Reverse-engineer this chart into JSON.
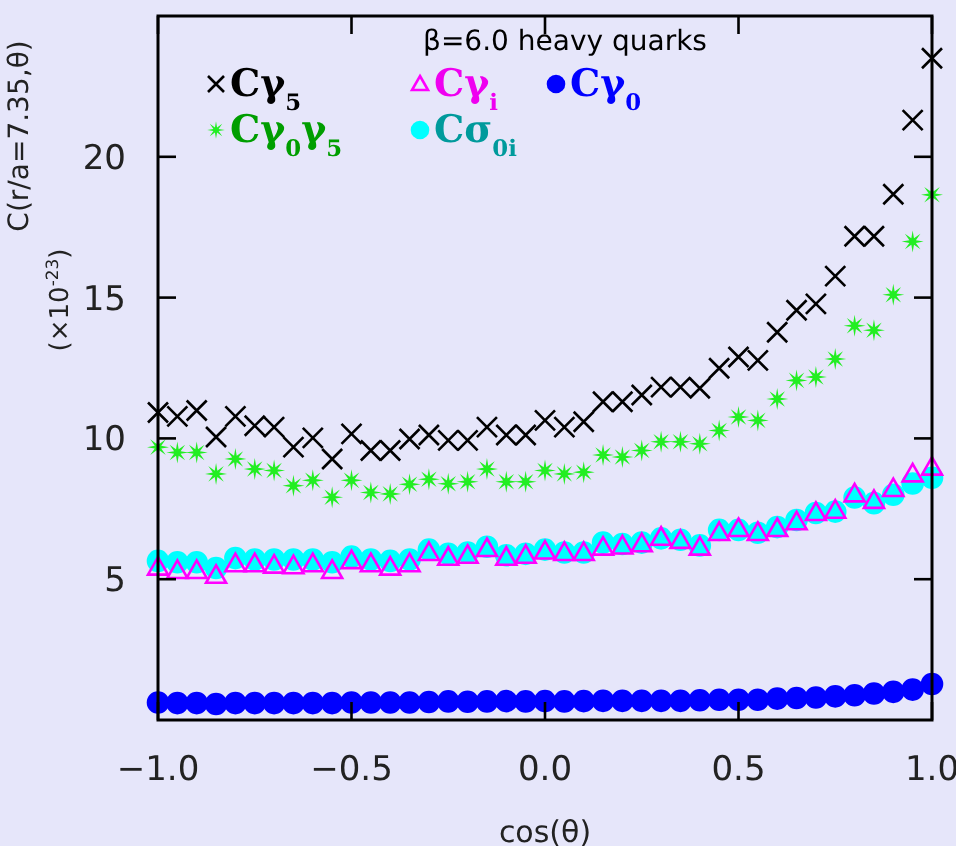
{
  "chart_data": {
    "type": "scatter",
    "title": "β=6.0 heavy quarks",
    "xlabel": "cos(θ)",
    "ylabel": "C(r/a=7.35,θ)\n(×10$^{-23}$)",
    "x": [
      -1,
      -0.95,
      -0.9,
      -0.85,
      -0.8,
      -0.75,
      -0.7,
      -0.65,
      -0.6,
      -0.55,
      -0.5,
      -0.45,
      -0.4,
      -0.35,
      -0.3,
      -0.25,
      -0.2,
      -0.15,
      -0.1,
      -0.05,
      0,
      0.05,
      0.1,
      0.15,
      0.2,
      0.25,
      0.3,
      0.35,
      0.4,
      0.45,
      0.5,
      0.55,
      0.6,
      0.65,
      0.7,
      0.75,
      0.8,
      0.85,
      0.9,
      0.95,
      1
    ],
    "series": [
      {
        "name": "Cγ$_{5}$",
        "color": "#000000",
        "marker": "cross",
        "values": [
          10.92,
          10.78,
          10.99,
          10.05,
          10.78,
          10.45,
          10.4,
          9.69,
          10.02,
          9.27,
          10.16,
          9.57,
          9.57,
          9.98,
          10.12,
          9.93,
          9.93,
          10.4,
          10.12,
          10.12,
          10.64,
          10.4,
          10.59,
          11.3,
          11.3,
          11.54,
          11.82,
          11.82,
          11.78,
          12.49,
          12.89,
          12.77,
          13.77,
          14.55,
          14.78,
          15.76,
          17.18,
          17.18,
          18.67,
          21.3,
          23.5
        ]
      },
      {
        "name": "Cγ$_{i}$",
        "color": "#ff00ff",
        "marker": "triangle",
        "values": [
          5.43,
          5.31,
          5.31,
          5.14,
          5.55,
          5.55,
          5.5,
          5.48,
          5.55,
          5.31,
          5.66,
          5.55,
          5.43,
          5.55,
          5.95,
          5.78,
          5.85,
          6.09,
          5.78,
          5.85,
          6.0,
          5.95,
          5.95,
          6.14,
          6.18,
          6.26,
          6.49,
          6.38,
          6.14,
          6.66,
          6.8,
          6.66,
          6.8,
          7.04,
          7.37,
          7.45,
          8.03,
          7.8,
          8.22,
          8.74,
          8.98
        ]
      },
      {
        "name": "Cγ$_{0}$",
        "color": "#0000ff",
        "marker": "circle",
        "values": [
          0.62,
          0.6,
          0.6,
          0.57,
          0.6,
          0.6,
          0.6,
          0.6,
          0.6,
          0.6,
          0.62,
          0.62,
          0.62,
          0.62,
          0.64,
          0.66,
          0.65,
          0.66,
          0.67,
          0.66,
          0.67,
          0.66,
          0.67,
          0.68,
          0.68,
          0.68,
          0.68,
          0.68,
          0.7,
          0.72,
          0.72,
          0.72,
          0.76,
          0.78,
          0.8,
          0.84,
          0.88,
          0.94,
          1.0,
          1.08,
          1.28
        ]
      },
      {
        "name": "Cγ$_{0}$γ$_{5}$",
        "color": "#22ee22",
        "marker": "star",
        "values": [
          9.69,
          9.5,
          9.5,
          8.74,
          9.27,
          8.91,
          8.86,
          8.32,
          8.51,
          7.91,
          8.51,
          8.08,
          8.03,
          8.37,
          8.55,
          8.39,
          8.46,
          8.91,
          8.46,
          8.46,
          8.86,
          8.74,
          8.8,
          9.41,
          9.34,
          9.57,
          9.88,
          9.88,
          9.81,
          10.28,
          10.76,
          10.64,
          11.4,
          12.06,
          12.18,
          12.82,
          14.0,
          13.84,
          15.1,
          16.99,
          18.65
        ]
      },
      {
        "name": "Cσ$_{0i}$",
        "color": "#00ffff",
        "marker": "circle",
        "values": [
          5.65,
          5.6,
          5.6,
          5.4,
          5.75,
          5.7,
          5.7,
          5.7,
          5.7,
          5.6,
          5.8,
          5.7,
          5.65,
          5.7,
          6.05,
          5.9,
          5.95,
          6.15,
          5.85,
          5.9,
          6.05,
          5.95,
          5.95,
          6.3,
          6.25,
          6.3,
          6.45,
          6.4,
          6.2,
          6.75,
          6.75,
          6.65,
          6.85,
          7.1,
          7.35,
          7.4,
          7.9,
          7.7,
          8.0,
          8.4,
          8.6
        ]
      }
    ],
    "xlim": [
      -1,
      1
    ],
    "ylim": [
      0,
      25
    ],
    "xticks": [
      {
        "value": -1,
        "label": "−1.0"
      },
      {
        "value": -0.5,
        "label": "−0.5"
      },
      {
        "value": 0,
        "label": "0.0"
      },
      {
        "value": 0.5,
        "label": "0.5"
      },
      {
        "value": 1,
        "label": "1.0"
      }
    ],
    "yticks": [
      5,
      10,
      15,
      20
    ],
    "legend": "top left",
    "grid": false
  }
}
